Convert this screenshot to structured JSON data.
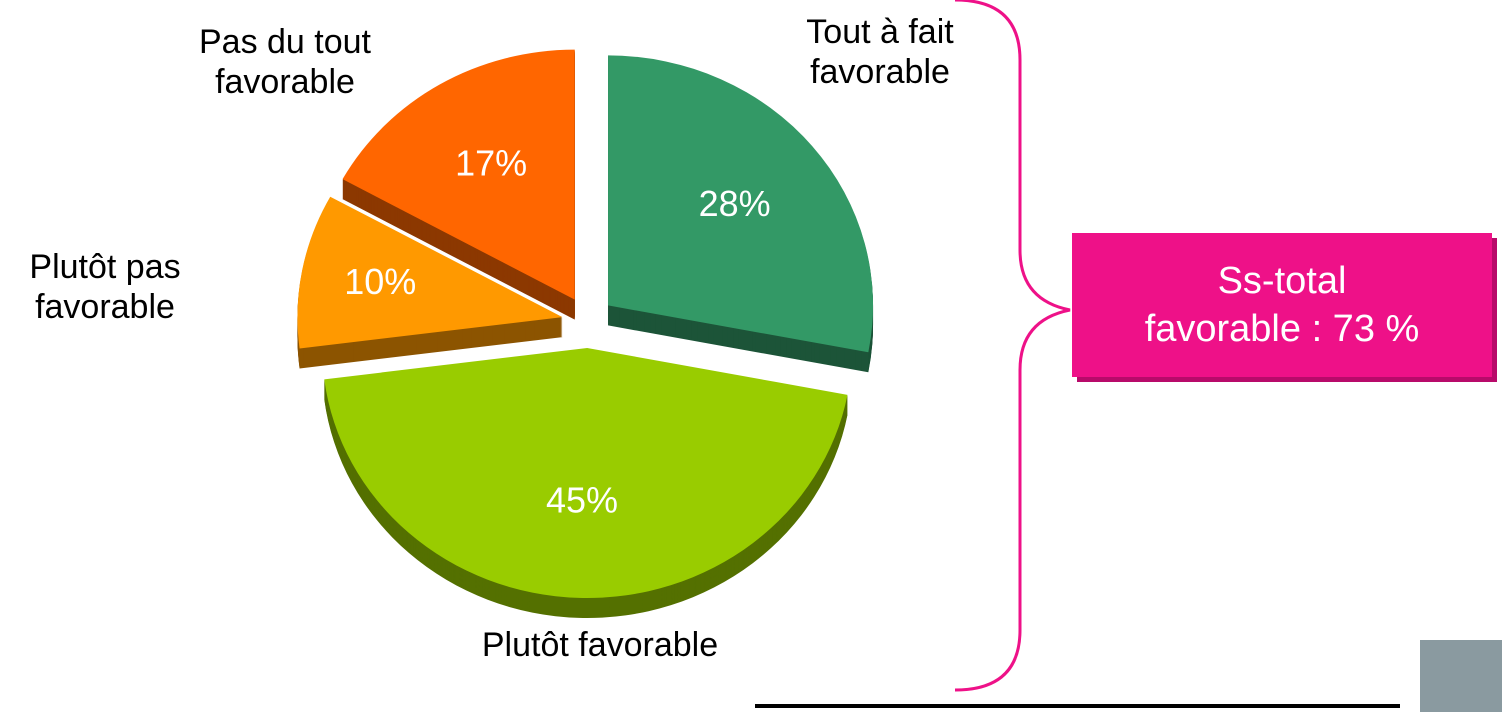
{
  "chart_data": {
    "type": "pie",
    "categories": [
      "Tout à fait favorable",
      "Plutôt favorable",
      "Plutôt pas favorable",
      "Pas du tout favorable"
    ],
    "values": [
      28,
      45,
      10,
      17
    ],
    "value_labels": [
      "28%",
      "45%",
      "10%",
      "17%"
    ],
    "colors": [
      "#339966",
      "#99cc00",
      "#ff9900",
      "#ff6600"
    ],
    "annotation": [
      "Ss-total",
      "favorable : 73 %"
    ]
  }
}
